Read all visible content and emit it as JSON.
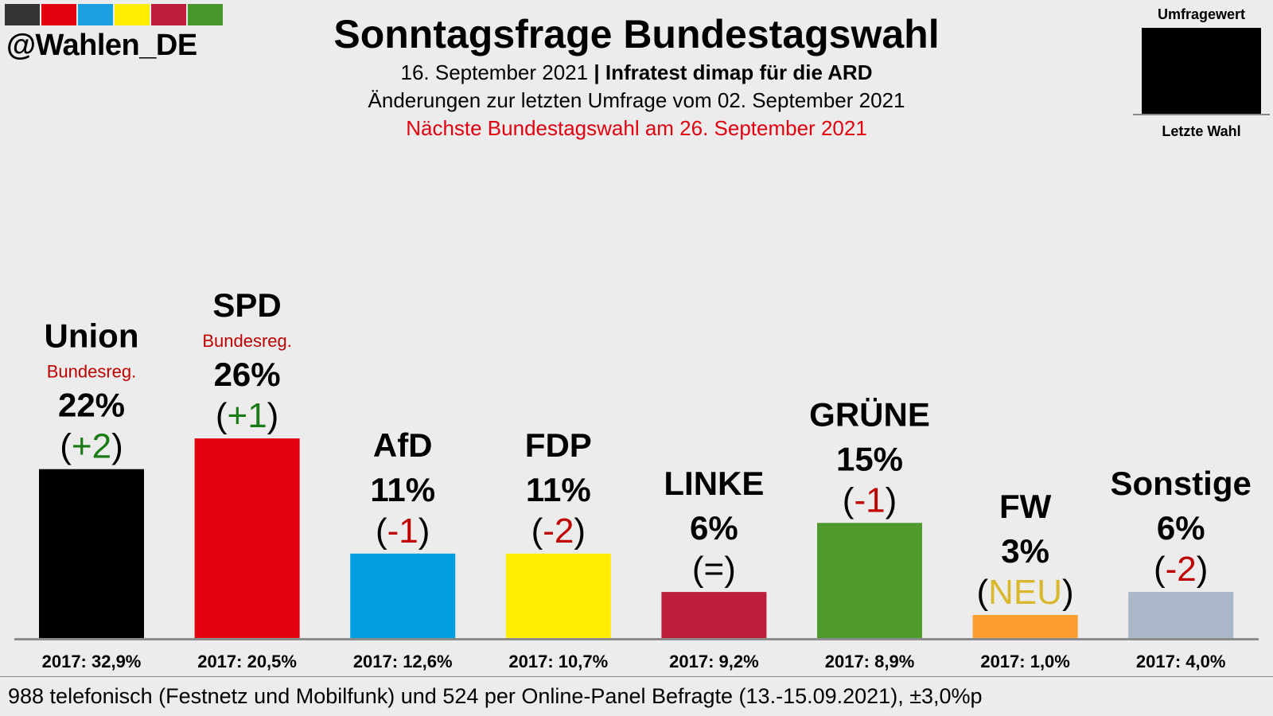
{
  "header": {
    "handle": "@Wahlen_DE",
    "stripe_colors": [
      "#333333",
      "#e3000f",
      "#1a9fe0",
      "#ffed00",
      "#be1e3c",
      "#46962b"
    ],
    "title": "Sonntagsfrage Bundestagswahl",
    "date": "16. September 2021",
    "separator": "|",
    "institute": "Infratest dimap für die ARD",
    "changes_note": "Änderungen zur letzten Umfrage vom 02. September 2021",
    "next_election": "Nächste Bundestagswahl am 26. September 2021"
  },
  "legend": {
    "top": "Umfragewert",
    "bottom": "Letzte Wahl"
  },
  "chart_data": {
    "type": "bar",
    "categories": [
      "Union",
      "SPD",
      "AfD",
      "FDP",
      "LINKE",
      "GRÜNE",
      "FW",
      "Sonstige"
    ],
    "values": [
      22,
      26,
      11,
      11,
      6,
      15,
      3,
      6
    ],
    "value_labels": [
      "22%",
      "26%",
      "11%",
      "11%",
      "6%",
      "15%",
      "3%",
      "6%"
    ],
    "changes": [
      "+2",
      "+1",
      "-1",
      "-2",
      "=",
      "-1",
      "NEU",
      "-2"
    ],
    "subtitles": [
      "Bundesreg.",
      "Bundesreg.",
      "",
      "",
      "",
      "",
      "",
      ""
    ],
    "previous_election": [
      "2017: 32,9%",
      "2017: 20,5%",
      "2017: 12,6%",
      "2017: 10,7%",
      "2017: 9,2%",
      "2017: 8,9%",
      "2017: 1,0%",
      "2017: 4,0%"
    ],
    "colors": [
      "#000000",
      "#e3000f",
      "#009ee0",
      "#ffed00",
      "#be1e3c",
      "#4f9a2c",
      "#ff9e30",
      "#a9b7c9"
    ],
    "change_colors": {
      "positive": "#1a7a14",
      "negative": "#c00000",
      "neutral": "#000000",
      "new": "#d9b82e"
    },
    "ylim": [
      0,
      26
    ]
  },
  "footer": {
    "text": "988 telefonisch (Festnetz und Mobilfunk) und 524 per Online-Panel Befragte (13.-15.09.2021), ±3,0%p"
  }
}
